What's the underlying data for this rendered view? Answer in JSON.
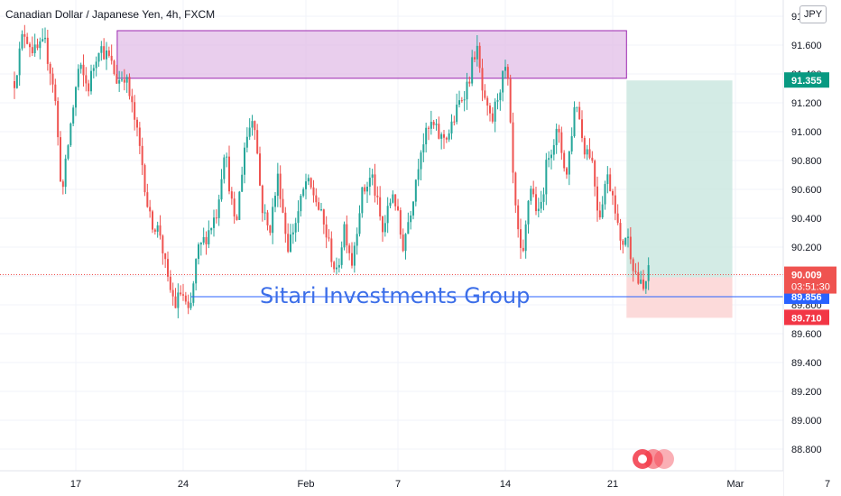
{
  "header": {
    "title": "Canadian Dollar / Japanese Yen, 4h, FXCM",
    "currency_button": "JPY"
  },
  "watermark": "Sitari Investments Group",
  "colors": {
    "up": "#26a69a",
    "down": "#ef5350",
    "zone": "#e1bee7",
    "zone_border": "#9c27b0",
    "target": "#c8e6df",
    "stop": "#fcd6d6",
    "hline": "#2962ff"
  },
  "chart_data": {
    "type": "candlestick",
    "symbol": "CADJPY",
    "timeframe": "4h",
    "ylim": [
      88.6,
      91.75
    ],
    "y_ticks": [
      88.8,
      89.0,
      89.2,
      89.4,
      89.6,
      89.8,
      90.0,
      90.2,
      90.4,
      90.6,
      90.8,
      91.0,
      91.2,
      91.4,
      91.6,
      91.8
    ],
    "y_tick_labels": [
      "88.800",
      "89.000",
      "89.200",
      "89.400",
      "89.600",
      "89.800",
      "90.000",
      "90.200",
      "90.400",
      "90.600",
      "90.800",
      "91.000",
      "91.200",
      "91.400",
      "91.600",
      "91.8"
    ],
    "x_tick_labels": [
      {
        "label": "17",
        "t": 17
      },
      {
        "label": "24",
        "t": 24
      },
      {
        "label": "Feb",
        "t": 32
      },
      {
        "label": "7",
        "t": 38
      },
      {
        "label": "14",
        "t": 45
      },
      {
        "label": "21",
        "t": 52
      },
      {
        "label": "Mar",
        "t": 60
      },
      {
        "label": "7",
        "t": 66
      }
    ],
    "price_path": [
      [
        13.0,
        91.35
      ],
      [
        13.6,
        91.7
      ],
      [
        14.3,
        91.55
      ],
      [
        15.0,
        91.6
      ],
      [
        15.6,
        91.3
      ],
      [
        16.1,
        90.55
      ],
      [
        16.6,
        91.0
      ],
      [
        17.2,
        91.45
      ],
      [
        17.8,
        91.3
      ],
      [
        18.5,
        91.6
      ],
      [
        19.2,
        91.5
      ],
      [
        19.7,
        91.35
      ],
      [
        20.2,
        91.4
      ],
      [
        20.8,
        91.1
      ],
      [
        21.3,
        90.8
      ],
      [
        21.8,
        90.4
      ],
      [
        22.5,
        90.3
      ],
      [
        23.0,
        89.95
      ],
      [
        23.5,
        89.8
      ],
      [
        23.9,
        89.9
      ],
      [
        24.4,
        89.7
      ],
      [
        24.9,
        90.15
      ],
      [
        25.6,
        90.3
      ],
      [
        26.2,
        90.45
      ],
      [
        26.7,
        90.9
      ],
      [
        27.4,
        90.3
      ],
      [
        28.0,
        90.9
      ],
      [
        28.6,
        91.15
      ],
      [
        29.1,
        90.5
      ],
      [
        29.6,
        90.3
      ],
      [
        30.2,
        90.7
      ],
      [
        30.8,
        90.2
      ],
      [
        31.4,
        90.4
      ],
      [
        32.0,
        90.65
      ],
      [
        32.6,
        90.55
      ],
      [
        33.3,
        90.3
      ],
      [
        34.0,
        90.0
      ],
      [
        34.5,
        90.35
      ],
      [
        35.0,
        90.1
      ],
      [
        35.6,
        90.55
      ],
      [
        36.3,
        90.7
      ],
      [
        37.0,
        90.3
      ],
      [
        37.7,
        90.6
      ],
      [
        38.3,
        90.2
      ],
      [
        38.9,
        90.5
      ],
      [
        39.5,
        90.9
      ],
      [
        40.2,
        91.05
      ],
      [
        40.8,
        90.95
      ],
      [
        41.4,
        91.0
      ],
      [
        42.0,
        91.2
      ],
      [
        42.6,
        91.35
      ],
      [
        43.1,
        91.6
      ],
      [
        43.6,
        91.2
      ],
      [
        44.1,
        91.05
      ],
      [
        44.6,
        91.3
      ],
      [
        45.1,
        91.45
      ],
      [
        45.6,
        90.5
      ],
      [
        46.1,
        90.05
      ],
      [
        46.6,
        90.65
      ],
      [
        47.2,
        90.4
      ],
      [
        47.8,
        90.85
      ],
      [
        48.4,
        91.0
      ],
      [
        49.0,
        90.7
      ],
      [
        49.6,
        91.25
      ],
      [
        50.1,
        90.9
      ],
      [
        50.6,
        90.85
      ],
      [
        51.1,
        90.4
      ],
      [
        51.6,
        90.7
      ],
      [
        52.1,
        90.55
      ],
      [
        52.5,
        90.2
      ],
      [
        52.9,
        90.3
      ],
      [
        53.3,
        90.1
      ],
      [
        53.7,
        89.95
      ],
      [
        54.0,
        89.9
      ],
      [
        54.4,
        90.05
      ]
    ],
    "last_price": 90.009,
    "countdown": "03:51:30",
    "resistance_zone": {
      "t_start": 19.7,
      "t_end": 52.9,
      "price_low": 91.37,
      "price_high": 91.7
    },
    "long_position": {
      "t_start": 52.9,
      "t_end": 59.8,
      "entry": 89.991,
      "target": 91.355,
      "stop": 89.71
    },
    "support_line": 89.856,
    "price_labels": [
      {
        "value": "91.355",
        "price": 91.355,
        "color": "#089981"
      },
      {
        "value": "89.991",
        "price": 89.991,
        "color": "#707070"
      },
      {
        "value": "89.856",
        "price": 89.856,
        "color": "#2962ff"
      },
      {
        "value": "89.710",
        "price": 89.71,
        "color": "#f23645"
      }
    ]
  }
}
